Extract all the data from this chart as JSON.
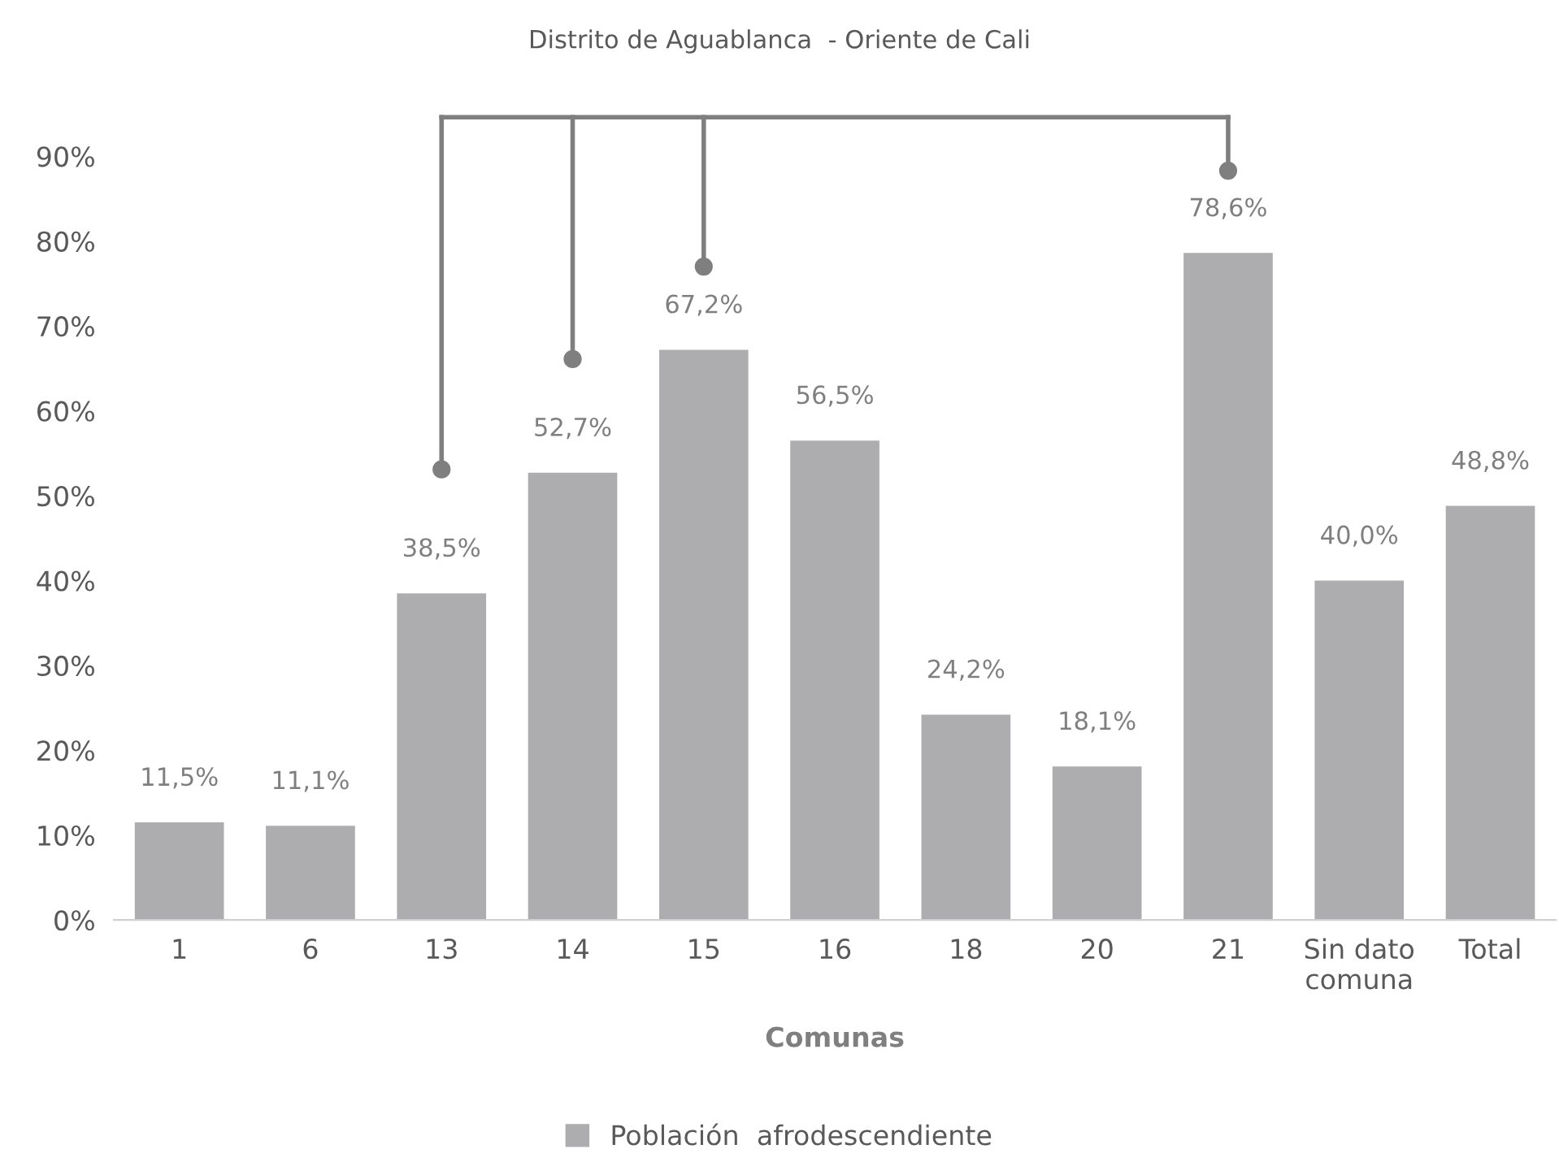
{
  "chart_data": {
    "type": "bar",
    "title": "Distrito de Aguablanca  - Oriente de Cali",
    "xlabel": "Comunas",
    "categories": [
      "1",
      "6",
      "13",
      "14",
      "15",
      "16",
      "18",
      "20",
      "21",
      "Sin dato\ncomuna",
      "Total"
    ],
    "series": [
      {
        "name": "Población  afrodescendiente",
        "color": "#adadb0",
        "values": [
          11.5,
          11.1,
          38.5,
          52.7,
          67.2,
          56.5,
          24.2,
          18.1,
          78.6,
          40.0,
          48.8
        ],
        "value_labels": [
          "11,5%",
          "11,1%",
          "38,5%",
          "52,7%",
          "67,2%",
          "56,5%",
          "24,2%",
          "18,1%",
          "78,6%",
          "40,0%",
          "48,8%"
        ]
      }
    ],
    "ylim": [
      0,
      90
    ],
    "yticks": [
      {
        "value": 0,
        "label": "0%"
      },
      {
        "value": 10,
        "label": "10%"
      },
      {
        "value": 20,
        "label": "20%"
      },
      {
        "value": 30,
        "label": "30%"
      },
      {
        "value": 40,
        "label": "40%"
      },
      {
        "value": 50,
        "label": "50%"
      },
      {
        "value": 60,
        "label": "60%"
      },
      {
        "value": 70,
        "label": "70%"
      },
      {
        "value": 80,
        "label": "80%"
      },
      {
        "value": 90,
        "label": "90%"
      }
    ],
    "grid": false,
    "legend": "bottom"
  }
}
